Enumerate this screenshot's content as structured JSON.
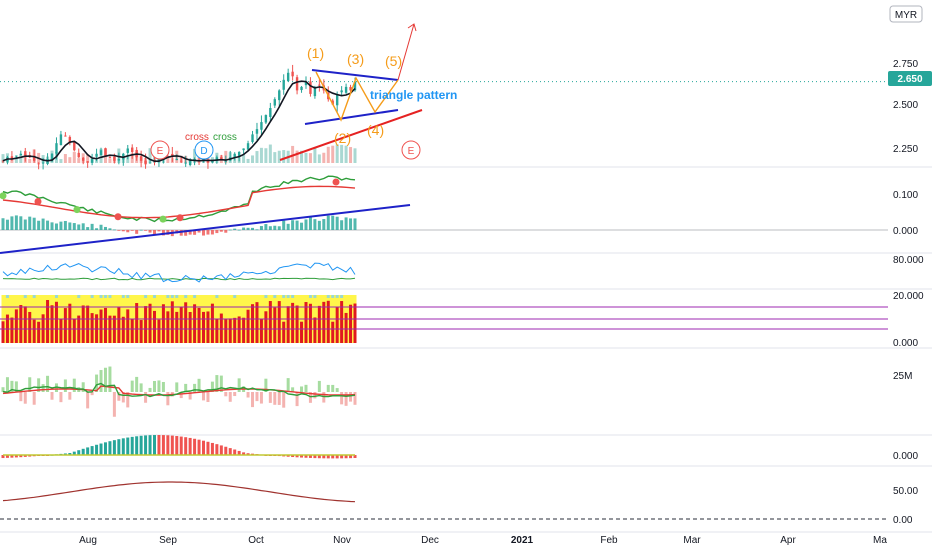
{
  "currency": "MYR",
  "price_badge": "2.650",
  "annotations": {
    "w1": "(1)",
    "w2": "(2)",
    "w3": "(3)",
    "w4": "(4)",
    "w5": "(5)",
    "triangle": "triangle pattern",
    "cross1": "cross",
    "cross2": "cross"
  },
  "event_markers": [
    "E",
    "D",
    "E"
  ],
  "colors": {
    "up": "#26a69a",
    "down": "#ef5350",
    "wave": "#f59c1a",
    "trend_blue": "#1e22c8",
    "trend_red": "#e52222",
    "label_blue": "#2196f3",
    "price_line": "#26a69a",
    "ind_green": "#2e9e3a",
    "ind_red": "#e53935",
    "yellow": "#fff64a",
    "magenta": "#9c27b0"
  },
  "chart_data": {
    "type": "line",
    "x_axis_labels": [
      "Aug",
      "Sep",
      "Oct",
      "Nov",
      "Dec",
      "2021",
      "Feb",
      "Mar",
      "Apr",
      "Ma"
    ],
    "panes": [
      {
        "name": "price",
        "y_ticks": [
          "2.750",
          "2.500",
          "2.250"
        ],
        "last": 2.65,
        "closes": [
          2.2,
          2.22,
          2.21,
          2.23,
          2.24,
          2.23,
          2.22,
          2.2,
          2.18,
          2.19,
          2.21,
          2.24,
          2.3,
          2.35,
          2.34,
          2.3,
          2.26,
          2.22,
          2.2,
          2.19,
          2.21,
          2.24,
          2.26,
          2.23,
          2.22,
          2.2,
          2.21,
          2.24,
          2.27,
          2.25,
          2.22,
          2.2,
          2.18,
          2.19,
          2.2,
          2.22,
          2.25,
          2.24,
          2.22,
          2.21,
          2.2,
          2.19,
          2.2,
          2.21,
          2.2,
          2.21,
          2.19,
          2.2,
          2.22,
          2.21,
          2.2,
          2.22,
          2.24,
          2.25,
          2.27,
          2.3,
          2.35,
          2.38,
          2.42,
          2.46,
          2.5,
          2.55,
          2.6,
          2.66,
          2.7,
          2.68,
          2.6,
          2.62,
          2.65,
          2.58,
          2.62,
          2.63,
          2.6,
          2.55,
          2.52,
          2.58,
          2.6,
          2.62,
          2.6,
          2.65
        ]
      },
      {
        "name": "macd",
        "y_ticks": [
          "0.100",
          "0.000"
        ]
      },
      {
        "name": "rsi",
        "y_ticks": [
          "80.000"
        ]
      },
      {
        "name": "bars",
        "y_ticks": [
          "20.000",
          "0.000"
        ]
      },
      {
        "name": "volume",
        "y_ticks": [
          "25M"
        ]
      },
      {
        "name": "histogram",
        "y_ticks": [
          "0.000"
        ]
      },
      {
        "name": "oscillator",
        "y_ticks": [
          "50.00",
          "0.00"
        ]
      }
    ]
  }
}
